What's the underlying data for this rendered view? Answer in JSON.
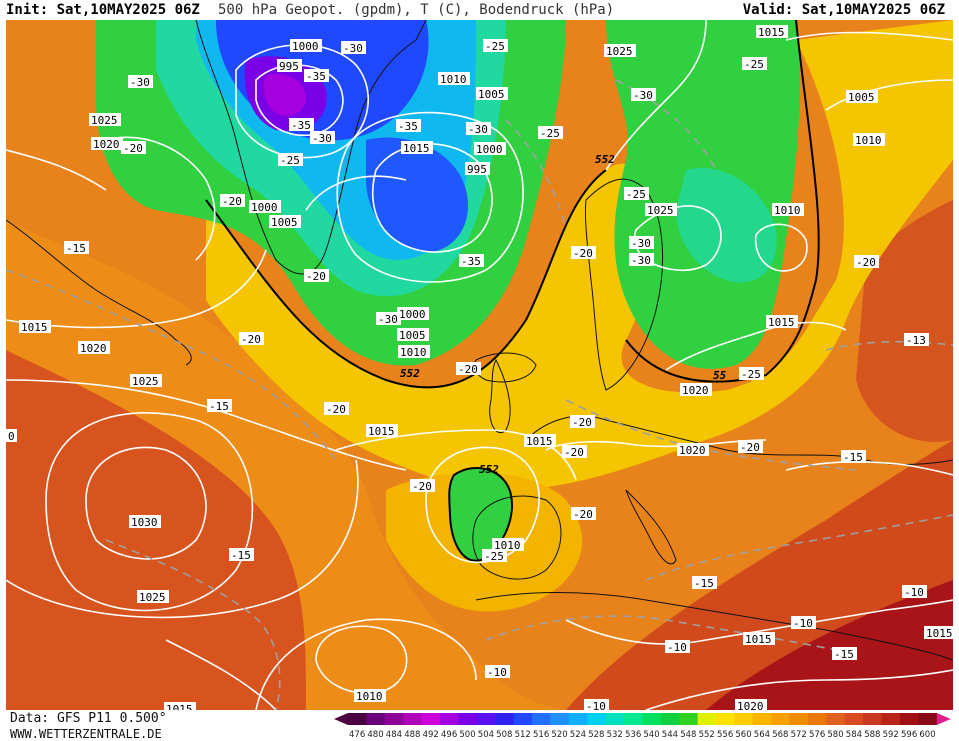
{
  "header": {
    "init": "Init: Sat,10MAY2025 06Z",
    "title": "500 hPa Geopot. (gpdm), T (C), Bodendruck (hPa)",
    "valid": "Valid: Sat,10MAY2025 06Z"
  },
  "footer": {
    "source": "Data: GFS P11 0.500°",
    "website": "WWW.WETTERZENTRALE.DE"
  },
  "colorbar": {
    "ticks": [
      "476",
      "480",
      "484",
      "488",
      "492",
      "496",
      "500",
      "504",
      "508",
      "512",
      "516",
      "520",
      "524",
      "528",
      "532",
      "536",
      "540",
      "544",
      "548",
      "552",
      "556",
      "560",
      "564",
      "568",
      "572",
      "576",
      "580",
      "584",
      "588",
      "592",
      "596",
      "600"
    ],
    "colors": [
      "#4a0040",
      "#6a007a",
      "#8c0096",
      "#b000b8",
      "#cc00d8",
      "#a400e0",
      "#7a00e6",
      "#5a10f0",
      "#3020f0",
      "#2048ff",
      "#2070ff",
      "#2090ff",
      "#10b0ff",
      "#00d0f0",
      "#00e0c0",
      "#00e890",
      "#00e060",
      "#10d040",
      "#30d020",
      "#e0f000",
      "#ffe000",
      "#ffcc00",
      "#ffb400",
      "#f8a000",
      "#f08c00",
      "#e87800",
      "#e06020",
      "#d84a20",
      "#c83820",
      "#b82418",
      "#a01010",
      "#880818"
    ]
  },
  "map": {
    "contour_labels": [
      {
        "text": "1000"
      },
      {
        "text": "995"
      },
      {
        "text": "-35"
      },
      {
        "text": "-35"
      },
      {
        "text": "-30"
      },
      {
        "text": "-30"
      },
      {
        "text": "-25"
      },
      {
        "text": "1010"
      },
      {
        "text": "1005"
      },
      {
        "text": "-35"
      },
      {
        "text": "-30"
      },
      {
        "text": "1015"
      },
      {
        "text": "1000"
      },
      {
        "text": "995"
      },
      {
        "text": "-25"
      },
      {
        "text": "-25"
      },
      {
        "text": "1025"
      },
      {
        "text": "-30"
      },
      {
        "text": "-30"
      },
      {
        "text": "1015"
      },
      {
        "text": "1005"
      },
      {
        "text": "1010"
      },
      {
        "text": "1025"
      },
      {
        "text": "1020"
      },
      {
        "text": "-20"
      },
      {
        "text": "-30"
      },
      {
        "text": "1000"
      },
      {
        "text": "1005"
      },
      {
        "text": "-20"
      },
      {
        "text": "-20"
      },
      {
        "text": "-15"
      },
      {
        "text": "-20"
      },
      {
        "text": "-35"
      },
      {
        "text": "-30"
      },
      {
        "text": "1000"
      },
      {
        "text": "1005"
      },
      {
        "text": "1010"
      },
      {
        "text": "552"
      },
      {
        "text": "552"
      },
      {
        "text": "-20"
      },
      {
        "text": "-25"
      },
      {
        "text": "1025"
      },
      {
        "text": "-30"
      },
      {
        "text": "-25"
      },
      {
        "text": "1010"
      },
      {
        "text": "-20"
      },
      {
        "text": "-20"
      },
      {
        "text": "1015"
      },
      {
        "text": "1020"
      },
      {
        "text": "-20"
      },
      {
        "text": "1025"
      },
      {
        "text": "-15"
      },
      {
        "text": "-20"
      },
      {
        "text": "1015"
      },
      {
        "text": "-20"
      },
      {
        "text": "1015"
      },
      {
        "text": "-13"
      },
      {
        "text": "1020"
      },
      {
        "text": "55"
      },
      {
        "text": "-25"
      },
      {
        "text": "1020"
      },
      {
        "text": "-20"
      },
      {
        "text": "-15"
      },
      {
        "text": "1015"
      },
      {
        "text": "552"
      },
      {
        "text": "-20"
      },
      {
        "text": "-20"
      },
      {
        "text": "1030"
      },
      {
        "text": "1010"
      },
      {
        "text": "-25"
      },
      {
        "text": "-15"
      },
      {
        "text": "1025"
      },
      {
        "text": "-15"
      },
      {
        "text": "-10"
      },
      {
        "text": "-10"
      },
      {
        "text": "1015"
      },
      {
        "text": "-10"
      },
      {
        "text": "1015"
      },
      {
        "text": "-15"
      },
      {
        "text": "1010"
      },
      {
        "text": "-10"
      },
      {
        "text": "-10"
      },
      {
        "text": "1015"
      },
      {
        "text": "1020"
      },
      {
        "text": "0"
      }
    ]
  }
}
